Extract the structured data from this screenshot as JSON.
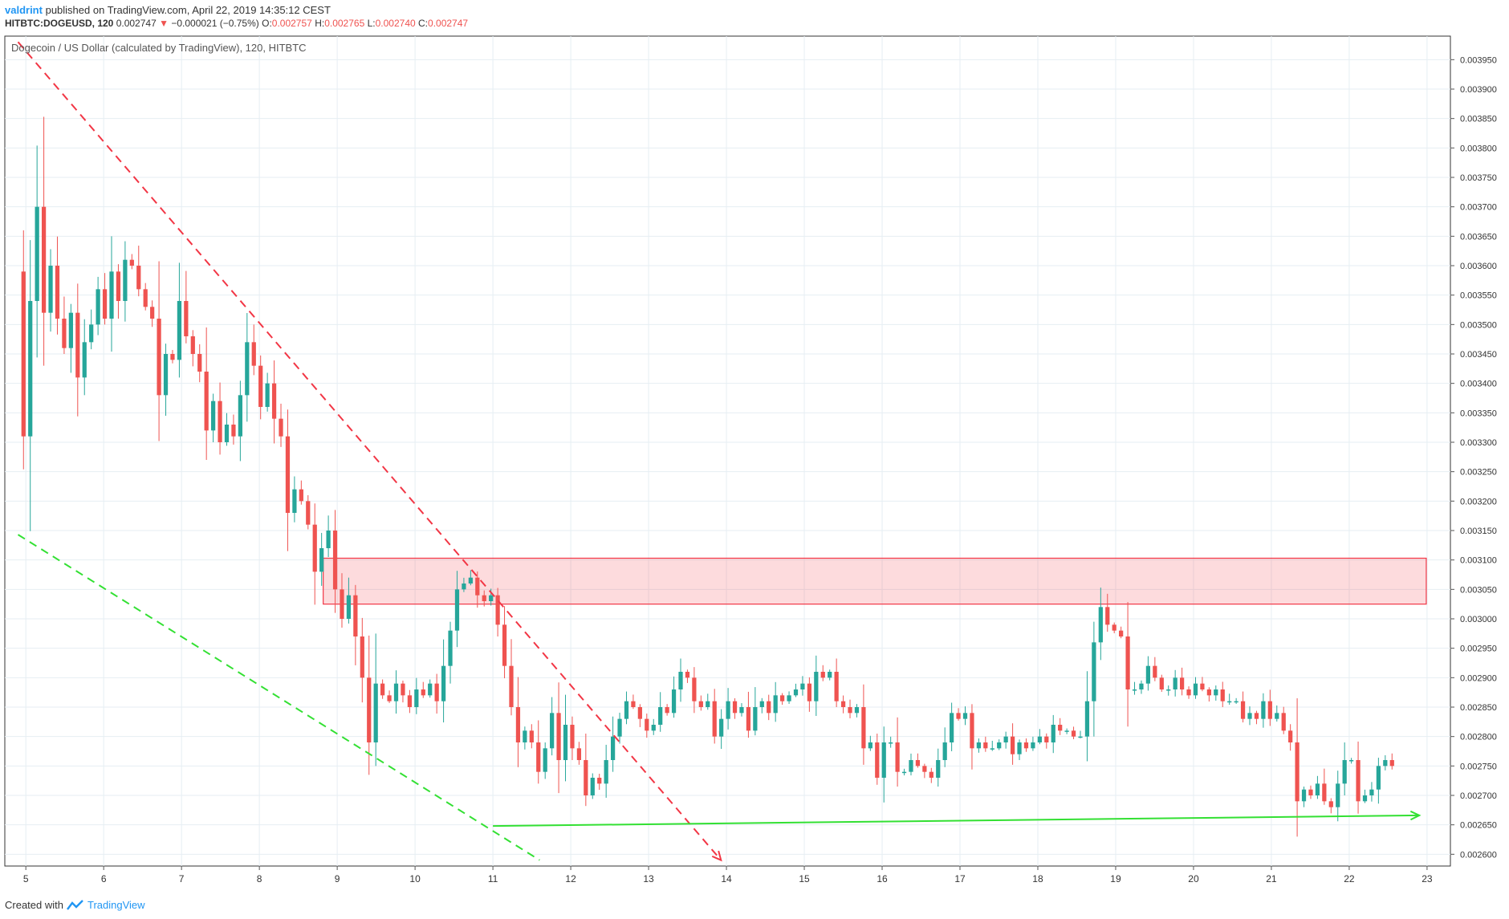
{
  "header": {
    "author": "valdrint",
    "published": "published on TradingView.com, April 22, 2019 14:35:12 CEST",
    "symbol": "HITBTC:DOGEUSD, 120",
    "last": "0.002747",
    "change_arrow": "▼",
    "change": "−0.000021 (−0.75%)",
    "o_label": "O:",
    "o_value": "0.002757",
    "h_label": "H:",
    "h_value": "0.002765",
    "l_label": "L:",
    "l_value": "0.002740",
    "c_label": "C:",
    "c_value": "0.002747",
    "down_color": "#ef5350"
  },
  "footer": {
    "created": "Created with",
    "brand": "TradingView"
  },
  "chart_data": {
    "type": "candlestick",
    "title": "Dogecoin / US Dollar (calculated by TradingView), 120, HITBTC",
    "x_ticks": [
      "5",
      "6",
      "7",
      "8",
      "9",
      "10",
      "11",
      "12",
      "13",
      "14",
      "15",
      "16",
      "17",
      "18",
      "19",
      "20",
      "21",
      "22",
      "23"
    ],
    "x_tick_days": [
      5,
      6,
      7,
      8,
      9,
      10,
      11,
      12,
      13,
      14,
      15,
      16,
      17,
      18,
      19,
      20,
      21,
      22,
      23
    ],
    "xlim": [
      4.73,
      23.3
    ],
    "ylim": [
      0.00258,
      0.00399
    ],
    "y_ticks": [
      "0.002600",
      "0.002650",
      "0.002700",
      "0.002750",
      "0.002800",
      "0.002850",
      "0.002900",
      "0.002950",
      "0.003000",
      "0.003050",
      "0.003100",
      "0.003150",
      "0.003200",
      "0.003250",
      "0.003300",
      "0.003350",
      "0.003400",
      "0.003450",
      "0.003500",
      "0.003550",
      "0.003600",
      "0.003650",
      "0.003700",
      "0.003750",
      "0.003800",
      "0.003850",
      "0.003900",
      "0.003950"
    ],
    "y_tick_values": [
      0.0026,
      0.00265,
      0.0027,
      0.00275,
      0.0028,
      0.00285,
      0.0029,
      0.00295,
      0.003,
      0.00305,
      0.0031,
      0.00315,
      0.0032,
      0.00325,
      0.0033,
      0.00335,
      0.0034,
      0.00345,
      0.0035,
      0.00355,
      0.0036,
      0.00365,
      0.0037,
      0.00375,
      0.0038,
      0.00385,
      0.0039,
      0.00395
    ],
    "grid": true,
    "up_color": "#26a69a",
    "down_color": "#ef5350",
    "close_path_start": 0.00359,
    "closes": [
      0.00331,
      0.00354,
      0.0037,
      0.00352,
      0.0036,
      0.00351,
      0.00346,
      0.00352,
      0.00341,
      0.00347,
      0.0035,
      0.00356,
      0.00351,
      0.00359,
      0.00354,
      0.00361,
      0.0036,
      0.00356,
      0.00353,
      0.00351,
      0.00338,
      0.00345,
      0.00344,
      0.00354,
      0.00348,
      0.00345,
      0.00342,
      0.00332,
      0.00337,
      0.0033,
      0.00333,
      0.00331,
      0.00338,
      0.00347,
      0.00343,
      0.00336,
      0.0034,
      0.00334,
      0.00331,
      0.00318,
      0.00322,
      0.0032,
      0.00316,
      0.00308,
      0.00312,
      0.00315,
      0.00305,
      0.003,
      0.00304,
      0.00297,
      0.0029,
      0.00279,
      0.00289,
      0.00287,
      0.00286,
      0.00289,
      0.00287,
      0.00285,
      0.00288,
      0.00287,
      0.00289,
      0.00286,
      0.00292,
      0.00298,
      0.00305,
      0.00306,
      0.00307,
      0.00304,
      0.00303,
      0.00304,
      0.00299,
      0.00292,
      0.00285,
      0.00279,
      0.00281,
      0.00279,
      0.00274,
      0.00278,
      0.00284,
      0.00276,
      0.00282,
      0.00278,
      0.00276,
      0.0027,
      0.00273,
      0.00272,
      0.00276,
      0.0028,
      0.00283,
      0.00286,
      0.00285,
      0.00283,
      0.00281,
      0.00282,
      0.00285,
      0.00284,
      0.00288,
      0.00291,
      0.0029,
      0.00286,
      0.00285,
      0.00286,
      0.0028,
      0.00283,
      0.00286,
      0.00284,
      0.00285,
      0.00281,
      0.00285,
      0.00286,
      0.00284,
      0.00287,
      0.00286,
      0.00287,
      0.00288,
      0.00289,
      0.00286,
      0.00291,
      0.0029,
      0.00291,
      0.00286,
      0.00285,
      0.00284,
      0.00285,
      0.00278,
      0.00279,
      0.00273,
      0.00279,
      0.00279,
      0.00274,
      0.00274,
      0.00276,
      0.00275,
      0.00274,
      0.00273,
      0.00276,
      0.00279,
      0.00284,
      0.00283,
      0.00284,
      0.00278,
      0.00279,
      0.00278,
      0.00278,
      0.00279,
      0.0028,
      0.00277,
      0.00279,
      0.00278,
      0.00279,
      0.0028,
      0.00279,
      0.00282,
      0.00281,
      0.00281,
      0.0028,
      0.0028,
      0.00286,
      0.00296,
      0.00302,
      0.00299,
      0.00298,
      0.00297,
      0.00288,
      0.00288,
      0.00289,
      0.00292,
      0.0029,
      0.00288,
      0.00288,
      0.0029,
      0.00288,
      0.00287,
      0.00289,
      0.00288,
      0.00287,
      0.00288,
      0.00286,
      0.00286,
      0.00286,
      0.00283,
      0.00284,
      0.00283,
      0.00286,
      0.00283,
      0.00284,
      0.00281,
      0.00279,
      0.00269,
      0.00271,
      0.0027,
      0.00272,
      0.00269,
      0.00268,
      0.00272,
      0.00276,
      0.00276,
      0.00269,
      0.0027,
      0.00271,
      0.00275,
      0.00276,
      0.00275
    ],
    "resistance_zone": {
      "ymin": 0.003025,
      "ymax": 0.003103,
      "xmin": 8.82,
      "xmax": 22.99
    },
    "lines": [
      {
        "name": "descending-resistance",
        "color": "#f23645",
        "dashed": true,
        "arrow": true,
        "x0": 4.9,
        "y0": 0.00398,
        "x1": 13.93,
        "y1": 0.00259
      },
      {
        "name": "descending-support",
        "color": "#33e033",
        "dashed": true,
        "arrow": false,
        "x0": 4.9,
        "y0": 0.003143,
        "x1": 11.6,
        "y1": 0.00259
      },
      {
        "name": "horizontal-support",
        "color": "#33e033",
        "dashed": false,
        "arrow": true,
        "x0": 11.0,
        "y0": 0.002648,
        "x1": 22.9,
        "y1": 0.002666
      }
    ]
  }
}
